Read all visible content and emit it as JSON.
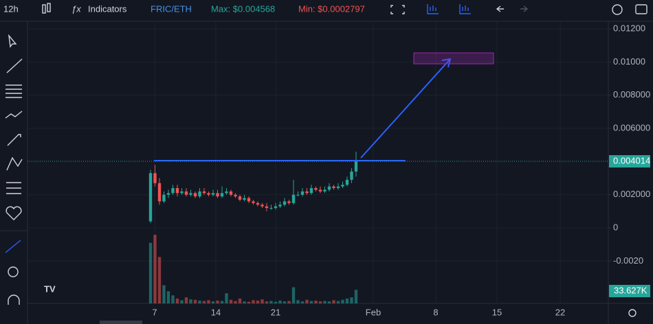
{
  "toolbar": {
    "interval": "12h",
    "indicators": "Indicators",
    "symbol": "FRIC/ETH",
    "max": "Max: $0.004568",
    "min": "Min: $0.0002797"
  },
  "chart_data": {
    "type": "candlestick",
    "up_color": "#26a69a",
    "down_color": "#ef5350",
    "open": [
      0.0004,
      0.0033,
      0.0027,
      0.0016,
      0.002,
      0.0021,
      0.0024,
      0.0021,
      0.0022,
      0.002,
      0.0021,
      0.0019,
      0.0022,
      0.0021,
      0.002,
      0.0021,
      0.0019,
      0.0021,
      0.0022,
      0.002,
      0.0019,
      0.0017,
      0.0018,
      0.0016,
      0.0015,
      0.0014,
      0.0013,
      0.0012,
      0.0012,
      0.0013,
      0.0014,
      0.0016,
      0.0015,
      0.002,
      0.002,
      0.0022,
      0.0021,
      0.0024,
      0.0023,
      0.0022,
      0.0023,
      0.0025,
      0.0024,
      0.0025,
      0.0026,
      0.0029,
      0.0034
    ],
    "high": [
      0.0035,
      0.0038,
      0.003,
      0.0022,
      0.0023,
      0.0026,
      0.0026,
      0.0024,
      0.0024,
      0.0023,
      0.0022,
      0.0024,
      0.0024,
      0.0022,
      0.0023,
      0.0023,
      0.0025,
      0.0024,
      0.0023,
      0.0021,
      0.002,
      0.002,
      0.0019,
      0.0017,
      0.0016,
      0.0015,
      0.0015,
      0.0014,
      0.0015,
      0.0016,
      0.0018,
      0.0017,
      0.0029,
      0.0022,
      0.0024,
      0.0024,
      0.0026,
      0.0025,
      0.0025,
      0.0025,
      0.0027,
      0.0026,
      0.0027,
      0.0028,
      0.0031,
      0.0036,
      0.0046
    ],
    "low": [
      0.0003,
      0.0025,
      0.0014,
      0.0015,
      0.0018,
      0.002,
      0.0019,
      0.002,
      0.0019,
      0.0019,
      0.0018,
      0.0018,
      0.002,
      0.0019,
      0.0019,
      0.0018,
      0.0018,
      0.002,
      0.0019,
      0.0018,
      0.0016,
      0.0016,
      0.0015,
      0.0014,
      0.0013,
      0.0012,
      0.001,
      0.0011,
      0.0011,
      0.0012,
      0.0013,
      0.0014,
      0.0014,
      0.0019,
      0.0019,
      0.002,
      0.002,
      0.0022,
      0.0021,
      0.0021,
      0.0022,
      0.0023,
      0.0023,
      0.0024,
      0.0025,
      0.0027,
      0.0031
    ],
    "close": [
      0.0033,
      0.0027,
      0.0016,
      0.002,
      0.0021,
      0.0024,
      0.0021,
      0.0022,
      0.002,
      0.0021,
      0.0019,
      0.0022,
      0.0021,
      0.002,
      0.0021,
      0.0019,
      0.0021,
      0.0022,
      0.002,
      0.0019,
      0.0017,
      0.0018,
      0.0016,
      0.0015,
      0.0014,
      0.0013,
      0.0012,
      0.0012,
      0.0013,
      0.0014,
      0.0016,
      0.0015,
      0.002,
      0.002,
      0.0022,
      0.0021,
      0.0024,
      0.0023,
      0.0022,
      0.0023,
      0.0025,
      0.0024,
      0.0025,
      0.0026,
      0.0029,
      0.0034,
      0.004
    ],
    "volume": [
      150000,
      170000,
      115000,
      45000,
      30000,
      20000,
      12000,
      8000,
      15000,
      10000,
      9000,
      7000,
      6000,
      8000,
      5000,
      7000,
      6000,
      25000,
      9000,
      6000,
      12000,
      5000,
      4000,
      8000,
      7000,
      10000,
      5000,
      6000,
      4000,
      7000,
      5000,
      6000,
      40000,
      8000,
      5000,
      9000,
      6000,
      7000,
      5000,
      6000,
      5000,
      8000,
      6000,
      9000,
      12000,
      15000,
      33627
    ],
    "volume_last": 33627,
    "volume_last_label": "33.627K",
    "last_price": 0.004014,
    "ylim": [
      -0.00455,
      0.01229
    ],
    "yticks": [
      {
        "value": 0.012,
        "label": "0.01200"
      },
      {
        "value": 0.01,
        "label": "0.01000"
      },
      {
        "value": 0.008,
        "label": "0.008000"
      },
      {
        "value": 0.006,
        "label": "0.006000"
      },
      {
        "value": 0.002,
        "label": "0.002000"
      },
      0,
      {
        "value": -0.002,
        "label": "-0.0020"
      }
    ],
    "x_labels": [
      "7",
      "14",
      "21",
      "Feb",
      "8",
      "15",
      "22"
    ],
    "grid": true
  }
}
